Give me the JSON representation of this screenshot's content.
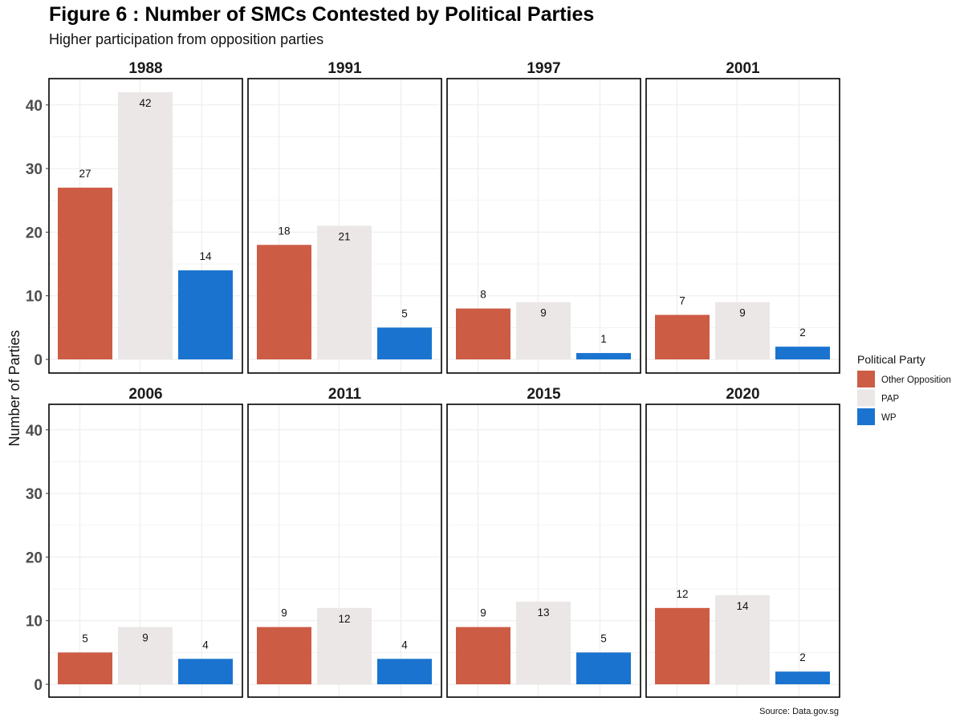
{
  "title": "Figure 6 : Number of SMCs Contested by Political Parties",
  "subtitle": "Higher participation from opposition parties",
  "caption": "Source: Data.gov.sg",
  "chart_data": {
    "type": "bar",
    "facet_by": "year",
    "categories": [
      "Other Opposition",
      "PAP",
      "WP"
    ],
    "ylabel": "Number of Parties",
    "xlabel": "",
    "ylim": [
      0,
      44
    ],
    "yticks": [
      0,
      10,
      20,
      30,
      40
    ],
    "grid": true,
    "legend": {
      "title": "Political Party",
      "position": "right",
      "entries": [
        {
          "name": "Other Opposition",
          "color": "#CD5C45"
        },
        {
          "name": "PAP",
          "color": "#EBE7E6"
        },
        {
          "name": "WP",
          "color": "#1A74CF"
        }
      ]
    },
    "facets": [
      {
        "label": "1988",
        "values": [
          27,
          42,
          14
        ]
      },
      {
        "label": "1991",
        "values": [
          18,
          21,
          5
        ]
      },
      {
        "label": "1997",
        "values": [
          8,
          9,
          1
        ]
      },
      {
        "label": "2001",
        "values": [
          7,
          9,
          2
        ]
      },
      {
        "label": "2006",
        "values": [
          5,
          9,
          4
        ]
      },
      {
        "label": "2011",
        "values": [
          9,
          12,
          4
        ]
      },
      {
        "label": "2015",
        "values": [
          9,
          13,
          5
        ]
      },
      {
        "label": "2020",
        "values": [
          12,
          14,
          2
        ]
      }
    ]
  }
}
